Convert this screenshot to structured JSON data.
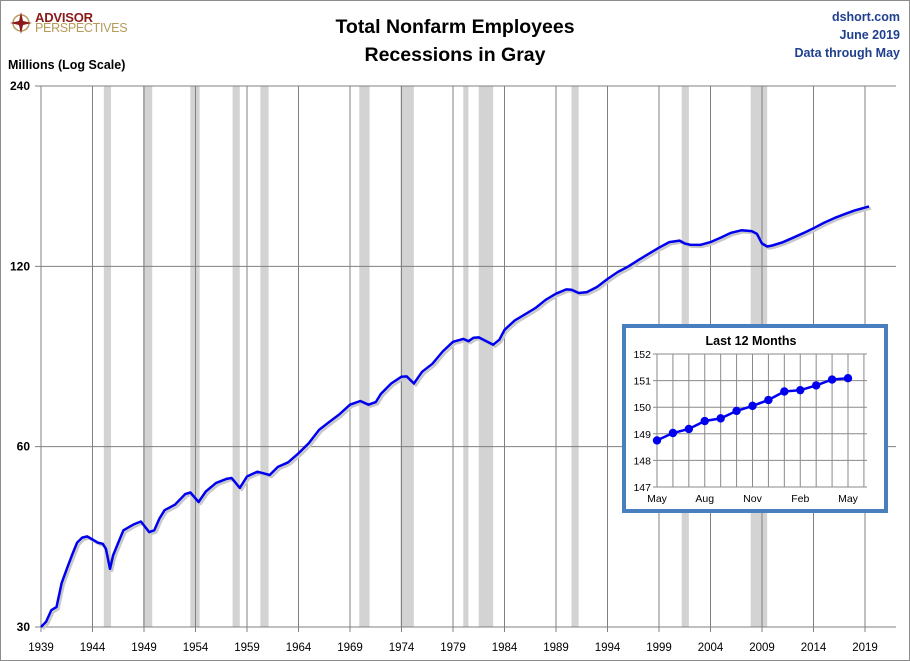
{
  "header": {
    "logo": {
      "line1": "ADVISOR",
      "line2": "PERSPECTIVES"
    },
    "title_line1": "Total Nonfarm Employees",
    "title_line2": "Recessions in Gray",
    "source_line1": "dshort.com",
    "source_line2": "June 2019",
    "source_line3": "Data through May",
    "ylabel": "Millions (Log Scale)"
  },
  "colors": {
    "line": "#0000ee",
    "recession": "#d3d3d3",
    "grid": "#808080",
    "inset_border": "#4a7fbf",
    "logo_red": "#8b1a1a",
    "logo_gold": "#b59a5a",
    "source_blue": "#1f3f8f"
  },
  "chart_data": [
    {
      "type": "line",
      "title": "Total Nonfarm Employees",
      "subtitle": "Recessions in Gray",
      "xlabel": "",
      "ylabel": "Millions (Log Scale)",
      "yscale": "log",
      "ylim": [
        30,
        240
      ],
      "yticks": [
        30,
        60,
        120,
        240
      ],
      "xticks": [
        1939,
        1944,
        1949,
        1954,
        1959,
        1964,
        1969,
        1974,
        1979,
        1984,
        1989,
        1994,
        1999,
        2004,
        2009,
        2014,
        2019
      ],
      "grid": true,
      "recessions": [
        [
          1945.1,
          1945.8
        ],
        [
          1948.9,
          1949.8
        ],
        [
          1953.5,
          1954.4
        ],
        [
          1957.6,
          1958.3
        ],
        [
          1960.3,
          1961.1
        ],
        [
          1969.9,
          1970.9
        ],
        [
          1973.9,
          1975.2
        ],
        [
          1980.0,
          1980.5
        ],
        [
          1981.5,
          1982.9
        ],
        [
          1990.5,
          1991.2
        ],
        [
          2001.2,
          2001.9
        ],
        [
          2007.9,
          2009.5
        ]
      ],
      "series": [
        {
          "name": "Total Nonfarm Employees (millions)",
          "x": [
            1939,
            1939.5,
            1940,
            1940.5,
            1941,
            1941.5,
            1942,
            1942.5,
            1943,
            1943.5,
            1944,
            1944.5,
            1945,
            1945.3,
            1945.7,
            1946,
            1946.5,
            1947,
            1948,
            1948.7,
            1949.5,
            1950,
            1950.5,
            1951,
            1952,
            1953,
            1953.5,
            1954.3,
            1955,
            1956,
            1957,
            1957.5,
            1958.3,
            1959,
            1960,
            1960.5,
            1961.2,
            1962,
            1963,
            1964,
            1965,
            1966,
            1967,
            1968,
            1969,
            1970,
            1970.8,
            1971.5,
            1972,
            1973,
            1974,
            1974.5,
            1975.2,
            1976,
            1977,
            1978,
            1979,
            1980,
            1980.5,
            1981,
            1981.5,
            1982.9,
            1983.5,
            1984,
            1985,
            1986,
            1987,
            1988,
            1989,
            1990,
            1990.5,
            1991.2,
            1992,
            1993,
            1994,
            1995,
            1996,
            1997,
            1998,
            1999,
            2000,
            2001,
            2001.5,
            2002,
            2003,
            2004,
            2005,
            2006,
            2007,
            2008,
            2008.5,
            2009,
            2009.5,
            2010,
            2011,
            2012,
            2013,
            2014,
            2015,
            2016,
            2017,
            2018,
            2019.4
          ],
          "values": [
            30.0,
            30.6,
            32.0,
            32.4,
            35.5,
            37.5,
            39.5,
            41.5,
            42.3,
            42.5,
            42.0,
            41.5,
            41.3,
            40.5,
            37.5,
            39.5,
            41.5,
            43.5,
            44.5,
            45.0,
            43.2,
            43.5,
            45.5,
            47.0,
            48.0,
            50.0,
            50.3,
            48.5,
            50.5,
            52.2,
            53.0,
            53.2,
            51.2,
            53.5,
            54.5,
            54.2,
            53.8,
            55.5,
            56.5,
            58.5,
            60.8,
            64.0,
            66.0,
            68.0,
            70.5,
            71.5,
            70.5,
            71.2,
            73.5,
            76.5,
            78.5,
            78.6,
            76.5,
            80.0,
            82.5,
            86.5,
            89.8,
            90.8,
            90.0,
            91.2,
            91.3,
            88.8,
            90.5,
            94.0,
            97.5,
            99.8,
            102.2,
            105.5,
            108.0,
            109.8,
            109.7,
            108.3,
            108.7,
            110.9,
            114.3,
            117.4,
            119.9,
            122.9,
            125.9,
            128.9,
            131.7,
            132.5,
            131.0,
            130.4,
            130.3,
            131.7,
            134.0,
            136.5,
            137.8,
            137.4,
            136.0,
            131.0,
            129.5,
            130.0,
            131.6,
            133.9,
            136.3,
            138.9,
            141.8,
            144.4,
            146.6,
            148.8,
            151.1
          ]
        }
      ]
    },
    {
      "type": "line",
      "title": "Last 12 Months",
      "xlabel": "",
      "ylabel": "",
      "ylim": [
        147,
        152
      ],
      "yticks": [
        147,
        148,
        149,
        150,
        151,
        152
      ],
      "grid": true,
      "markers": true,
      "categories": [
        "May",
        "Jun",
        "Jul",
        "Aug",
        "Sep",
        "Oct",
        "Nov",
        "Dec",
        "Jan",
        "Feb",
        "Mar",
        "Apr",
        "May"
      ],
      "xtick_labels": [
        "May",
        "Aug",
        "Nov",
        "Feb",
        "May"
      ],
      "series": [
        {
          "name": "Total Nonfarm Employees (millions)",
          "values": [
            148.75,
            149.03,
            149.18,
            149.48,
            149.58,
            149.86,
            150.05,
            150.27,
            150.59,
            150.64,
            150.82,
            151.04,
            151.09
          ]
        }
      ]
    }
  ]
}
